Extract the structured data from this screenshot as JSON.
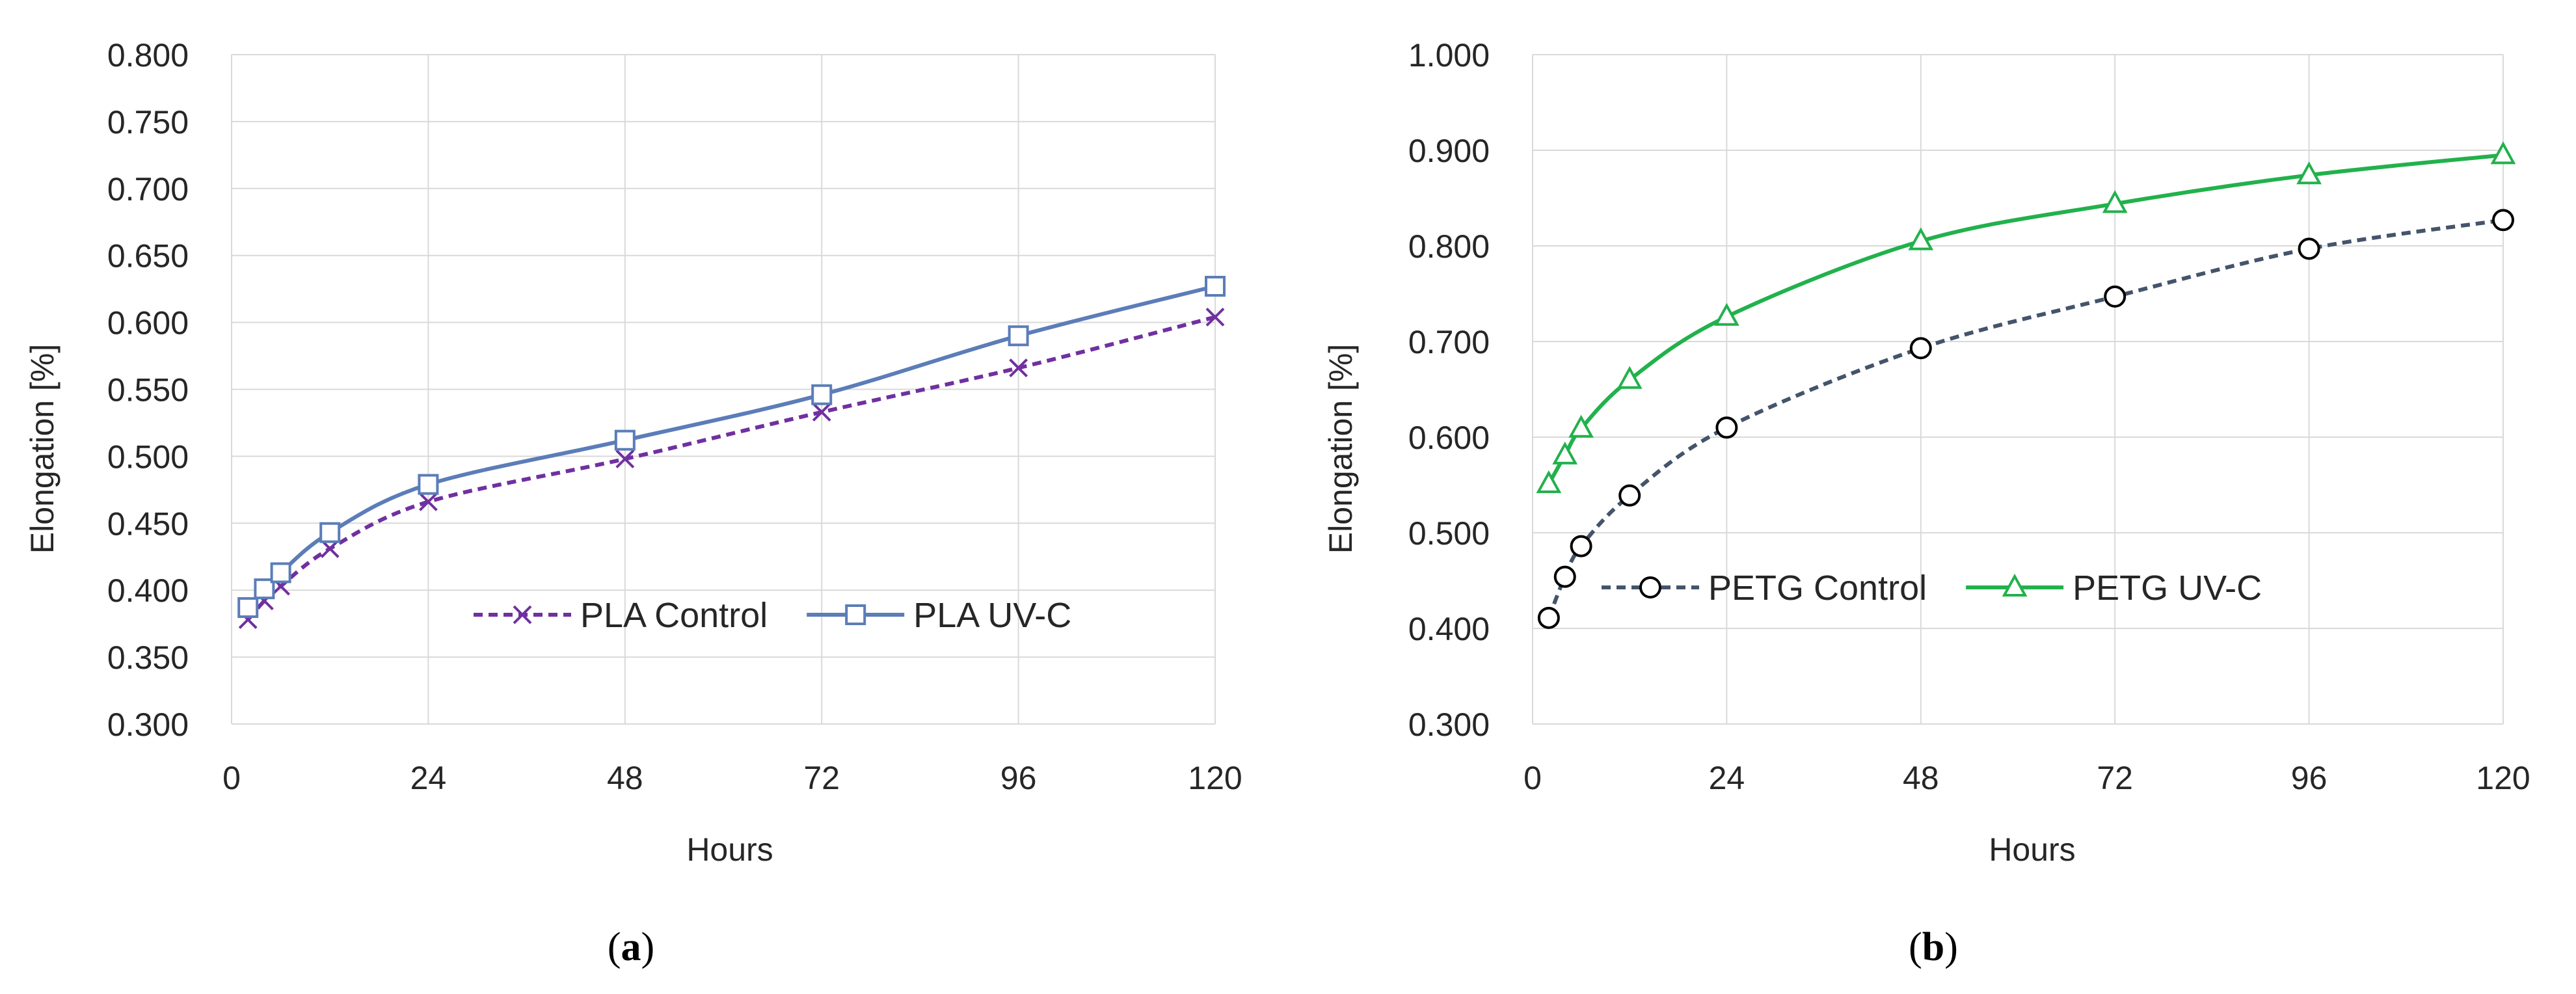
{
  "chart_data": [
    {
      "panel": "a",
      "type": "line",
      "title": "",
      "caption_letter": "a",
      "xlabel": "Hours",
      "ylabel": "Elongation [%]",
      "xlim": [
        0,
        120
      ],
      "ylim": [
        0.3,
        0.8
      ],
      "xticks": [
        0,
        24,
        48,
        72,
        96,
        120
      ],
      "xtick_labels": [
        "0",
        "24",
        "48",
        "72",
        "96",
        "120"
      ],
      "yticks": [
        0.3,
        0.35,
        0.4,
        0.45,
        0.5,
        0.55,
        0.6,
        0.65,
        0.7,
        0.75,
        0.8
      ],
      "ytick_labels": [
        "0.300",
        "0.350",
        "0.400",
        "0.450",
        "0.500",
        "0.550",
        "0.600",
        "0.650",
        "0.700",
        "0.750",
        "0.800"
      ],
      "grid": true,
      "legend_position": "center-right",
      "series": [
        {
          "name": "PLA Control",
          "color": "#7030A0",
          "line_style": "dashed",
          "marker": "x",
          "x": [
            2,
            4,
            6,
            12,
            24,
            48,
            72,
            96,
            120
          ],
          "values": [
            0.378,
            0.392,
            0.403,
            0.431,
            0.466,
            0.498,
            0.533,
            0.566,
            0.604
          ]
        },
        {
          "name": "PLA UV-C",
          "color": "#5B7DB8",
          "line_style": "solid",
          "marker": "square",
          "x": [
            2,
            4,
            6,
            12,
            24,
            48,
            72,
            96,
            120
          ],
          "values": [
            0.387,
            0.401,
            0.413,
            0.443,
            0.479,
            0.512,
            0.546,
            0.59,
            0.627
          ]
        }
      ]
    },
    {
      "panel": "b",
      "type": "line",
      "title": "",
      "caption_letter": "b",
      "xlabel": "Hours",
      "ylabel": "Elongation [%]",
      "xlim": [
        0,
        120
      ],
      "ylim": [
        0.3,
        1.0
      ],
      "xticks": [
        0,
        24,
        48,
        72,
        96,
        120
      ],
      "xtick_labels": [
        "0",
        "24",
        "48",
        "72",
        "96",
        "120"
      ],
      "yticks": [
        0.3,
        0.4,
        0.5,
        0.6,
        0.7,
        0.8,
        0.9,
        1.0
      ],
      "ytick_labels": [
        "0.300",
        "0.400",
        "0.500",
        "0.600",
        "0.700",
        "0.800",
        "0.900",
        "1.000"
      ],
      "grid": true,
      "legend_position": "center-right",
      "series": [
        {
          "name": "PETG Control",
          "color": "#44546A",
          "line_style": "dashed",
          "marker": "circle",
          "x": [
            2,
            4,
            6,
            12,
            24,
            48,
            72,
            96,
            120
          ],
          "values": [
            0.411,
            0.454,
            0.486,
            0.539,
            0.61,
            0.693,
            0.747,
            0.797,
            0.827
          ]
        },
        {
          "name": "PETG UV-C",
          "color": "#22B14C",
          "line_style": "solid",
          "marker": "triangle",
          "x": [
            2,
            4,
            6,
            12,
            24,
            48,
            72,
            96,
            120
          ],
          "values": [
            0.551,
            0.581,
            0.609,
            0.66,
            0.726,
            0.805,
            0.844,
            0.874,
            0.895
          ]
        }
      ]
    }
  ]
}
